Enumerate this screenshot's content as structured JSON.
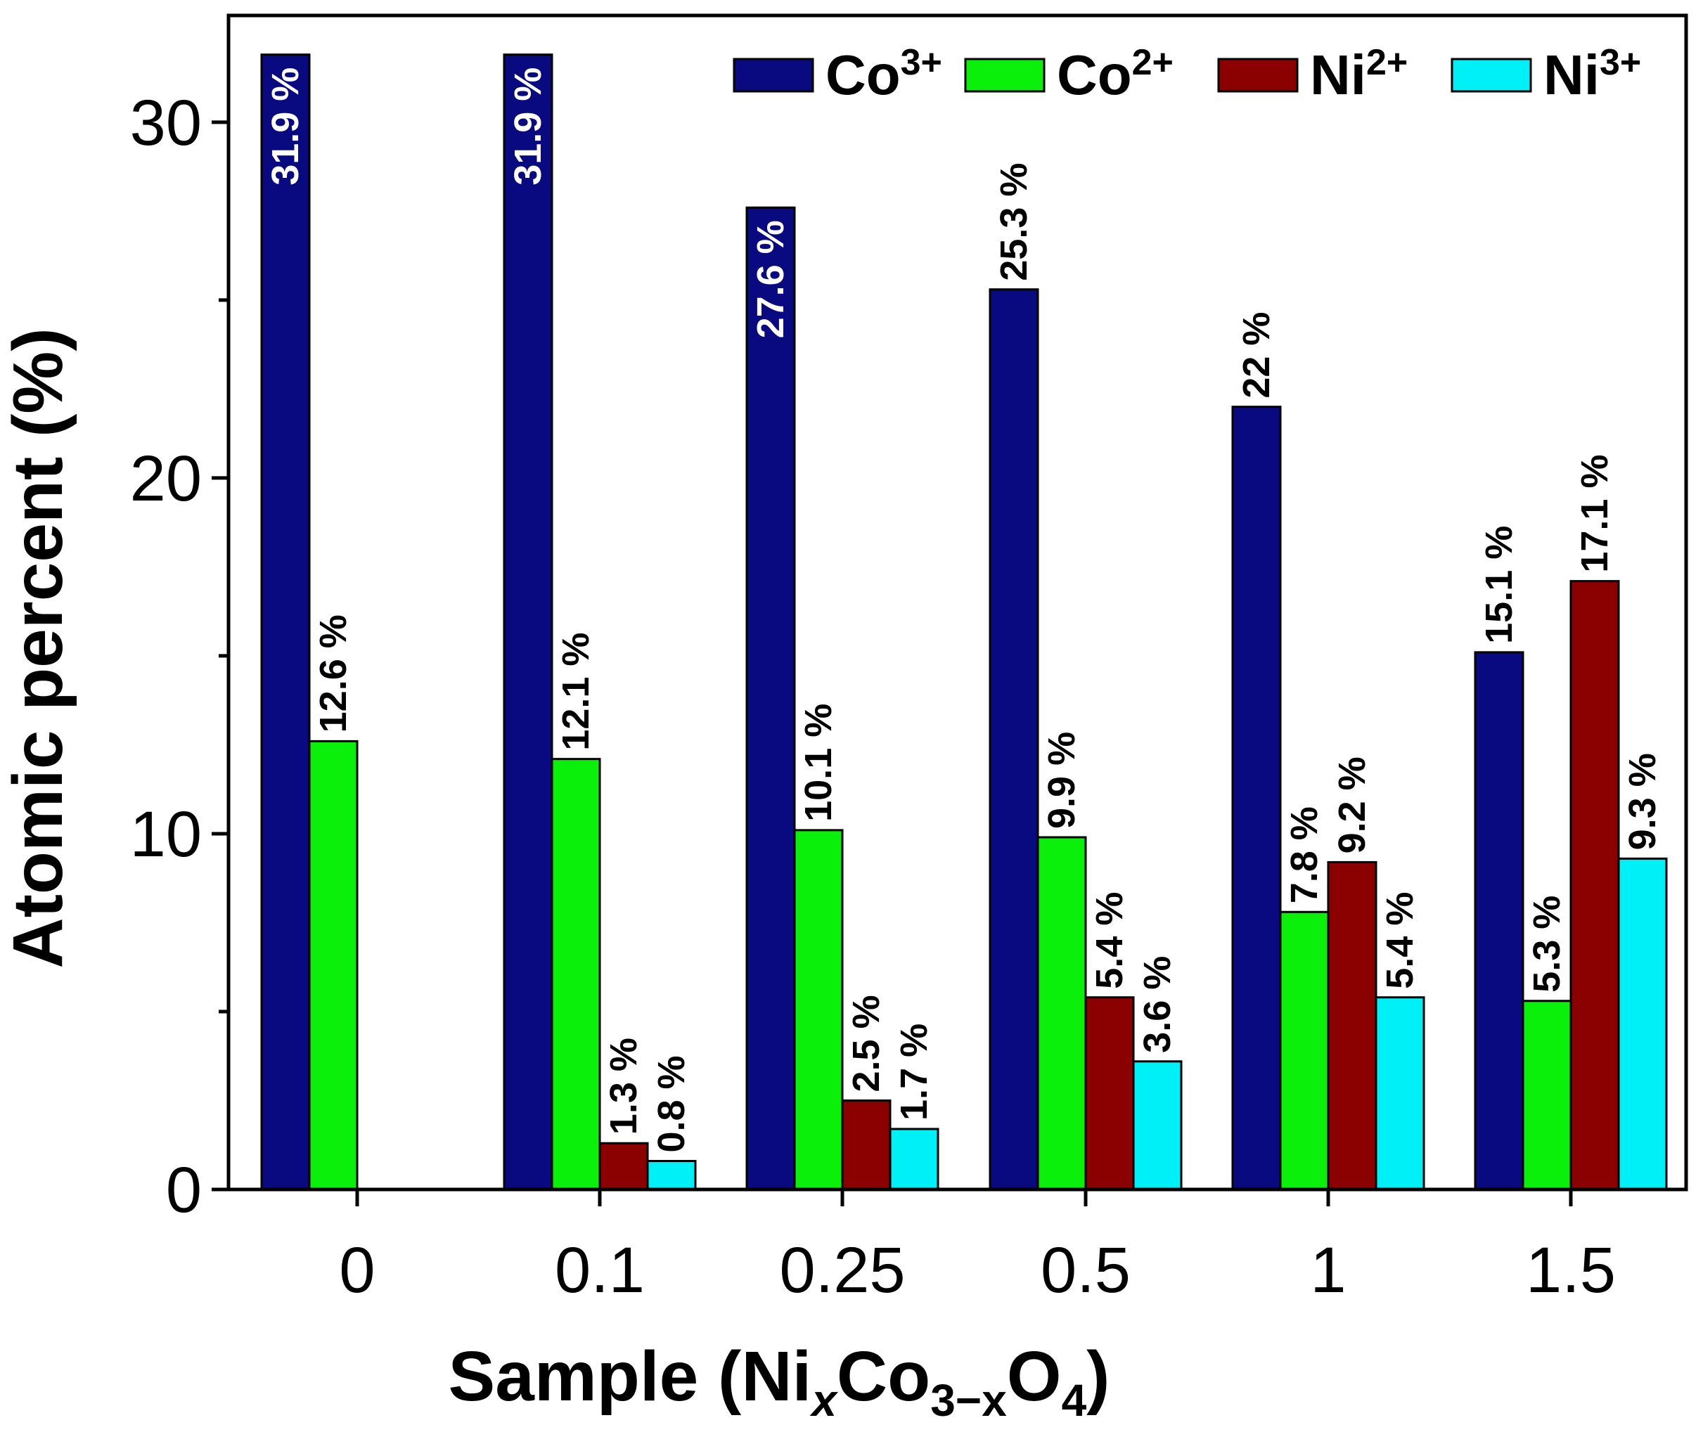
{
  "chart_data": {
    "type": "bar",
    "xlabel": {
      "main": "Sample (Ni",
      "sub1": "x",
      "mid": "Co",
      "sub2": "3−x",
      "mid2": "O",
      "sub3": "4",
      "end": ")"
    },
    "ylabel": "Atomic percent (%)",
    "ylim": [
      0,
      33
    ],
    "yticks": [
      0,
      10,
      20,
      30
    ],
    "categories": [
      "0",
      "0.1",
      "0.25",
      "0.5",
      "1",
      "1.5"
    ],
    "series": [
      {
        "name": "Co",
        "sup": "3+",
        "color": "#0a0a80",
        "values": [
          31.9,
          31.9,
          27.6,
          25.3,
          22,
          15.1
        ],
        "labels": [
          "31.9 %",
          "31.9 %",
          "27.6 %",
          "25.3 %",
          "22 %",
          "15.1 %"
        ],
        "label_inside": [
          true,
          true,
          true,
          false,
          false,
          false
        ]
      },
      {
        "name": "Co",
        "sup": "2+",
        "color": "#0af00a",
        "values": [
          12.6,
          12.1,
          10.1,
          9.9,
          7.8,
          5.3
        ],
        "labels": [
          "12.6 %",
          "12.1 %",
          "10.1 %",
          "9.9 %",
          "7.8 %",
          "5.3 %"
        ],
        "label_inside": [
          false,
          false,
          false,
          false,
          false,
          false
        ]
      },
      {
        "name": "Ni",
        "sup": "2+",
        "color": "#8b0000",
        "values": [
          null,
          1.3,
          2.5,
          5.4,
          9.2,
          17.1
        ],
        "labels": [
          null,
          "1.3 %",
          "2.5 %",
          "5.4 %",
          "9.2 %",
          "17.1 %"
        ],
        "label_inside": [
          false,
          false,
          false,
          false,
          false,
          false
        ]
      },
      {
        "name": "Ni",
        "sup": "3+",
        "color": "#00f0f8",
        "values": [
          null,
          0.8,
          1.7,
          3.6,
          5.4,
          9.3
        ],
        "labels": [
          null,
          "0.8 %",
          "1.7 %",
          "3.6 %",
          "5.4 %",
          "9.3 %"
        ],
        "label_inside": [
          false,
          false,
          false,
          false,
          false,
          false
        ]
      }
    ],
    "legend": "top-right",
    "grid": false
  }
}
